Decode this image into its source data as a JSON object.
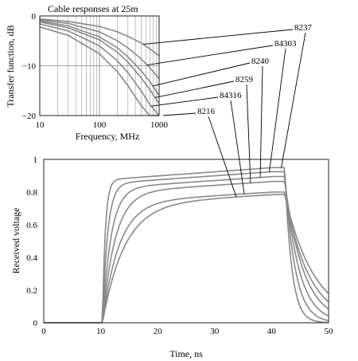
{
  "chart_data": [
    {
      "type": "line",
      "title": "Cable responses at 25m",
      "xlabel": "Frequency, MHz",
      "ylabel": "Transfer function, dB",
      "xscale": "log",
      "xlim": [
        10,
        1000
      ],
      "ylim": [
        -20,
        0
      ],
      "xticks": [
        "10",
        "100",
        "1000"
      ],
      "yticks": [
        "0",
        "−10",
        "−20"
      ],
      "grid": true,
      "series": [
        {
          "name": "8237",
          "x": [
            10,
            30,
            100,
            200,
            300,
            500,
            700,
            1000
          ],
          "y": [
            -0.6,
            -1.1,
            -2.1,
            -3.2,
            -4.1,
            -5.4,
            -6.6,
            -8.0
          ]
        },
        {
          "name": "84303",
          "x": [
            10,
            30,
            100,
            200,
            300,
            500,
            700,
            1000
          ],
          "y": [
            -0.8,
            -1.5,
            -3.2,
            -5.0,
            -6.4,
            -8.6,
            -10.4,
            -12.6
          ]
        },
        {
          "name": "8240",
          "x": [
            10,
            30,
            100,
            200,
            300,
            500,
            700,
            1000
          ],
          "y": [
            -1.0,
            -2.0,
            -4.2,
            -6.4,
            -8.2,
            -11.0,
            -13.2,
            -16.0
          ]
        },
        {
          "name": "8259",
          "x": [
            10,
            30,
            100,
            200,
            300,
            500,
            700,
            1000
          ],
          "y": [
            -1.2,
            -2.4,
            -4.8,
            -7.3,
            -9.3,
            -12.4,
            -14.8,
            -17.6
          ]
        },
        {
          "name": "84316",
          "x": [
            10,
            30,
            100,
            200,
            300,
            500,
            700,
            1000
          ],
          "y": [
            -1.6,
            -3.0,
            -6.0,
            -9.0,
            -11.4,
            -15.0,
            -17.8,
            -20.0
          ]
        },
        {
          "name": "8216",
          "x": [
            10,
            30,
            100,
            200,
            300,
            500,
            700,
            1000
          ],
          "y": [
            -2.2,
            -3.9,
            -7.6,
            -11.2,
            -14.0,
            -18.0,
            -20.0,
            -20.0
          ]
        }
      ]
    },
    {
      "type": "line",
      "title": "",
      "xlabel": "Time, ns",
      "ylabel": "Received voltage",
      "xlim": [
        0,
        50
      ],
      "ylim": [
        0,
        1
      ],
      "xticks": [
        "0",
        "10",
        "20",
        "30",
        "40",
        "50"
      ],
      "yticks": [
        "0",
        "0.2",
        "0.4",
        "0.6",
        "0.8",
        "1"
      ],
      "grid": false,
      "rise_ns": 10.3,
      "fall_ns": 42.3,
      "series": [
        {
          "name": "8237",
          "final": 0.95,
          "rise_tau": 0.5,
          "decay_tau": 1.2
        },
        {
          "name": "84303",
          "final": 0.925,
          "rise_tau": 0.9,
          "decay_tau": 1.8
        },
        {
          "name": "8240",
          "final": 0.895,
          "rise_tau": 1.5,
          "decay_tau": 2.5
        },
        {
          "name": "8259",
          "final": 0.865,
          "rise_tau": 2.2,
          "decay_tau": 3.3
        },
        {
          "name": "84316",
          "final": 0.8,
          "rise_tau": 2.9,
          "decay_tau": 4.2
        },
        {
          "name": "8216",
          "final": 0.785,
          "rise_tau": 3.8,
          "decay_tau": 5.2
        }
      ]
    }
  ]
}
